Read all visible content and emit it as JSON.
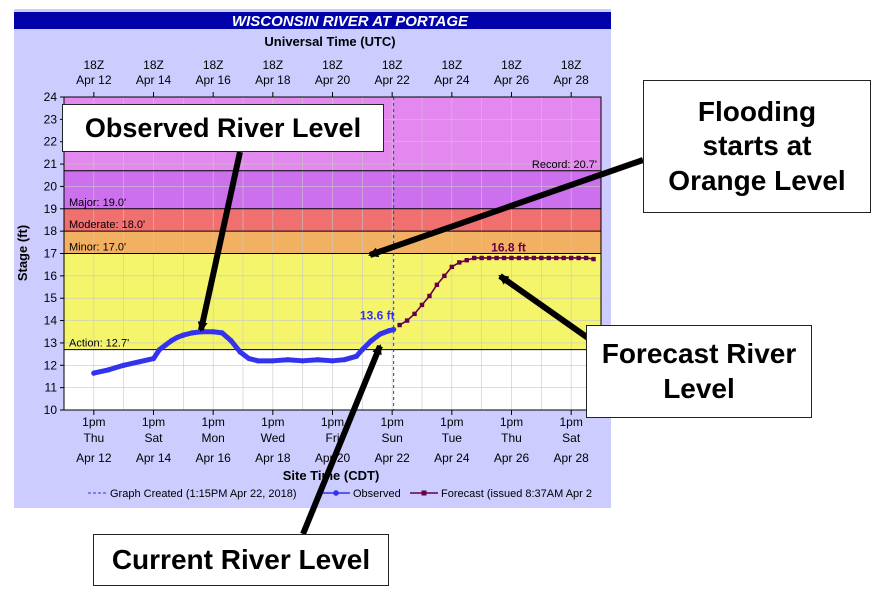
{
  "header": {
    "title": "WISCONSIN RIVER AT PORTAGE",
    "top_axis_title": "Universal Time (UTC)"
  },
  "colors": {
    "record": "#e388ee",
    "major": "#cc70ee",
    "moderate": "#f06f6f",
    "minor": "#f2b062",
    "action": "#f5f56c",
    "normal": "#ffffff",
    "frame": "#ccccff",
    "title_bar": "#0202aa",
    "observed": "#3333ee",
    "forecast": "#660044"
  },
  "chart_data": {
    "type": "line",
    "title": "WISCONSIN RIVER AT PORTAGE",
    "ylabel": "Stage (ft)",
    "xlabel": "Site Time (CDT)",
    "ylim": [
      10,
      24
    ],
    "yticks": [
      10,
      11,
      12,
      13,
      14,
      15,
      16,
      17,
      18,
      19,
      20,
      21,
      22,
      23,
      24
    ],
    "xlim_days": [
      "Apr 11",
      "Apr 29"
    ],
    "top_ticks": [
      {
        "line1": "18Z",
        "line2": "Apr 12"
      },
      {
        "line1": "18Z",
        "line2": "Apr 14"
      },
      {
        "line1": "18Z",
        "line2": "Apr 16"
      },
      {
        "line1": "18Z",
        "line2": "Apr 18"
      },
      {
        "line1": "18Z",
        "line2": "Apr 20"
      },
      {
        "line1": "18Z",
        "line2": "Apr 22"
      },
      {
        "line1": "18Z",
        "line2": "Apr 24"
      },
      {
        "line1": "18Z",
        "line2": "Apr 26"
      },
      {
        "line1": "18Z",
        "line2": "Apr 28"
      }
    ],
    "bottom_ticks": [
      {
        "time": "1pm",
        "day": "Thu",
        "date": "Apr 12"
      },
      {
        "time": "1pm",
        "day": "Sat",
        "date": "Apr 14"
      },
      {
        "time": "1pm",
        "day": "Mon",
        "date": "Apr 16"
      },
      {
        "time": "1pm",
        "day": "Wed",
        "date": "Apr 18"
      },
      {
        "time": "1pm",
        "day": "Fri",
        "date": "Apr 20"
      },
      {
        "time": "1pm",
        "day": "Sun",
        "date": "Apr 22"
      },
      {
        "time": "1pm",
        "day": "Tue",
        "date": "Apr 24"
      },
      {
        "time": "1pm",
        "day": "Thu",
        "date": "Apr 26"
      },
      {
        "time": "1pm",
        "day": "Sat",
        "date": "Apr 28"
      }
    ],
    "bands": [
      {
        "name": "record",
        "from": 20.7,
        "to": 24
      },
      {
        "name": "major",
        "from": 19.0,
        "to": 20.7
      },
      {
        "name": "moderate",
        "from": 18.0,
        "to": 19.0
      },
      {
        "name": "minor",
        "from": 17.0,
        "to": 18.0
      },
      {
        "name": "action",
        "from": 12.7,
        "to": 17.0
      }
    ],
    "thresholds": [
      {
        "label": "Record: 20.7'",
        "value": 20.7,
        "align": "right"
      },
      {
        "label": "Major: 19.0'",
        "value": 19.0,
        "align": "left"
      },
      {
        "label": "Moderate: 18.0'",
        "value": 18.0,
        "align": "left"
      },
      {
        "label": "Minor: 17.0'",
        "value": 17.0,
        "align": "left"
      },
      {
        "label": "Action: 12.7'",
        "value": 12.7,
        "align": "left"
      }
    ],
    "graph_created_day": 22.05,
    "series": [
      {
        "name": "Observed",
        "color": "#3333ee",
        "x_day": [
          12.0,
          12.5,
          13.0,
          13.5,
          14.0,
          14.2,
          14.4,
          14.6,
          14.8,
          15.0,
          15.3,
          15.6,
          16.0,
          16.3,
          16.6,
          16.9,
          17.2,
          17.5,
          18.0,
          18.5,
          19.0,
          19.5,
          20.0,
          20.4,
          20.8,
          21.0,
          21.3,
          21.6,
          21.9,
          22.05
        ],
        "values": [
          11.65,
          11.8,
          12.0,
          12.15,
          12.3,
          12.7,
          12.9,
          13.1,
          13.25,
          13.35,
          13.45,
          13.5,
          13.5,
          13.45,
          13.1,
          12.6,
          12.3,
          12.2,
          12.2,
          12.25,
          12.2,
          12.25,
          12.2,
          12.25,
          12.4,
          12.7,
          13.1,
          13.4,
          13.55,
          13.6
        ]
      },
      {
        "name": "Forecast (issued 8:37AM Apr 2",
        "color": "#660044",
        "x_day": [
          22.25,
          22.5,
          22.75,
          23.0,
          23.25,
          23.5,
          23.75,
          24.0,
          24.25,
          24.5,
          24.75,
          25.0,
          25.25,
          25.5,
          25.75,
          26.0,
          26.25,
          26.5,
          26.75,
          27.0,
          27.25,
          27.5,
          27.75,
          28.0,
          28.25,
          28.5,
          28.75
        ],
        "values": [
          13.8,
          14.0,
          14.3,
          14.7,
          15.1,
          15.6,
          16.0,
          16.4,
          16.6,
          16.7,
          16.8,
          16.8,
          16.8,
          16.8,
          16.8,
          16.8,
          16.8,
          16.8,
          16.8,
          16.8,
          16.8,
          16.8,
          16.8,
          16.8,
          16.8,
          16.8,
          16.75
        ]
      }
    ],
    "data_labels": [
      {
        "text": "13.6 ft",
        "series": "Observed",
        "x_day": 21.5,
        "value": 14.05
      },
      {
        "text": "16.8 ft",
        "series": "Forecast",
        "x_day": 25.9,
        "value": 17.1
      }
    ],
    "legend": [
      {
        "label": "Graph Created (1:15PM Apr 22, 2018)",
        "style": "dashed"
      },
      {
        "label": "Observed",
        "style": "observed"
      },
      {
        "label": "Forecast (issued 8:37AM Apr 2",
        "style": "forecast"
      }
    ],
    "legend_position": "bottom",
    "grid": true
  },
  "callouts": {
    "observed": "Observed River Level",
    "flooding": "Flooding\nstarts at\nOrange Level",
    "forecast": "Forecast River\nLevel",
    "current": "Current River Level"
  }
}
